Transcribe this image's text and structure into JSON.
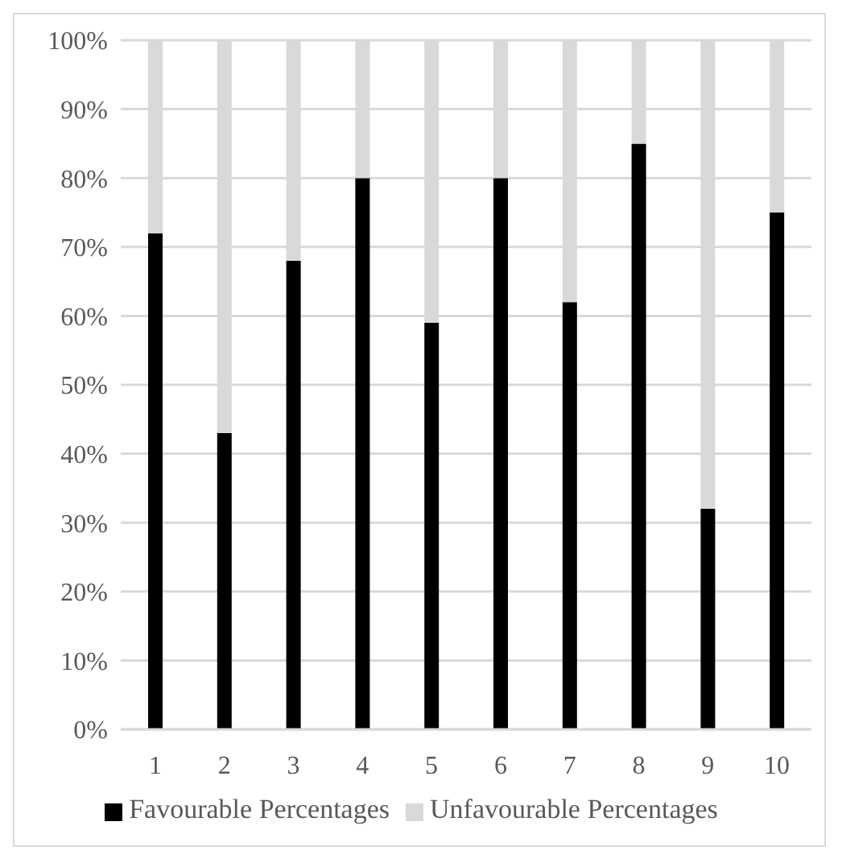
{
  "chart_data": {
    "type": "bar",
    "stacked": true,
    "categories": [
      "1",
      "2",
      "3",
      "4",
      "5",
      "6",
      "7",
      "8",
      "9",
      "10"
    ],
    "series": [
      {
        "name": "Favourable Percentages",
        "color": "#000000",
        "values": [
          72,
          43,
          68,
          80,
          59,
          80,
          62,
          85,
          32,
          75
        ]
      },
      {
        "name": "Unfavourable Percentages",
        "color": "#d9d9d9",
        "values": [
          28,
          57,
          32,
          20,
          41,
          20,
          38,
          15,
          68,
          25
        ]
      }
    ],
    "ylim": [
      0,
      100
    ],
    "yticks": [
      {
        "value": 0,
        "label": "0%"
      },
      {
        "value": 10,
        "label": "10%"
      },
      {
        "value": 20,
        "label": "20%"
      },
      {
        "value": 30,
        "label": "30%"
      },
      {
        "value": 40,
        "label": "40%"
      },
      {
        "value": 50,
        "label": "50%"
      },
      {
        "value": 60,
        "label": "60%"
      },
      {
        "value": 70,
        "label": "70%"
      },
      {
        "value": 80,
        "label": "80%"
      },
      {
        "value": 90,
        "label": "90%"
      },
      {
        "value": 100,
        "label": "100%"
      }
    ],
    "grid": "y",
    "legend": "bottom"
  }
}
